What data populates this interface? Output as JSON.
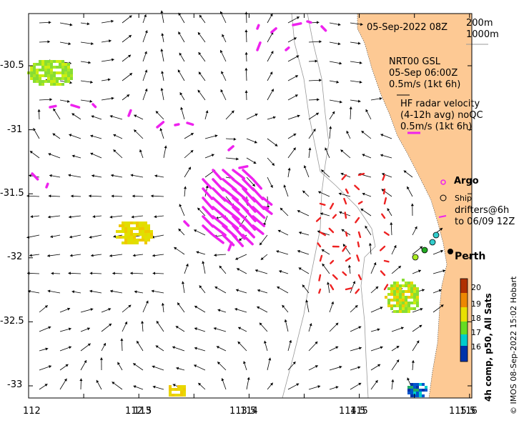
{
  "header": {
    "datetime": "05-Sep-2022 08Z"
  },
  "isobath_legend": [
    "200m",
    "1000m"
  ],
  "nrt": {
    "line1": "NRT00 GSL",
    "line2": "05-Sep 06:00Z",
    "scale": "0.5m/s (1kt 6h)"
  },
  "hf": {
    "line1": "HF radar velocity",
    "line2": "(4-12h avg) noQC",
    "scale": "0.5m/s (1kt 6h)"
  },
  "legend": {
    "argo": "Argo",
    "ship": "Ship",
    "drifters1": "drifters@6h",
    "drifters2": "to 06/09 12Z"
  },
  "city": "Perth",
  "colorbar": {
    "title": "4h comp, p50, All Sats",
    "ticks": [
      "20",
      "19",
      "18",
      "17",
      "16"
    ]
  },
  "credit": "© IMOS 08-Sep-2022 15:02 Hobart",
  "axes": {
    "x_ticks": [
      "112",
      "112.5",
      "113",
      "113.5",
      "114",
      "114.5",
      "115",
      "115.5",
      "116"
    ],
    "y_ticks": [
      "-30.5",
      "-31",
      "-31.5",
      "-32",
      "-32.5",
      "-33"
    ]
  },
  "colors": {
    "land": "#fdc994",
    "hf": "#ee22ee",
    "drifter": "#ee2222",
    "arrow": "#000000"
  }
}
